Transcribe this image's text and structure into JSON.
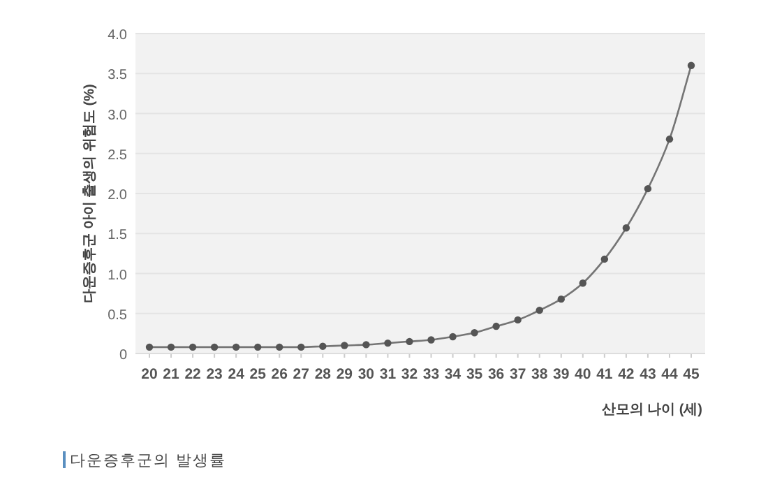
{
  "chart_data": {
    "type": "line",
    "xlabel": "산모의 나이 (세)",
    "ylabel": "다운증후군 아이 출생의 위험도 (%)",
    "annotations": [
      "다운증후군의 발생률"
    ],
    "categories": [
      "20",
      "21",
      "22",
      "23",
      "24",
      "25",
      "26",
      "27",
      "28",
      "29",
      "30",
      "31",
      "32",
      "33",
      "34",
      "35",
      "36",
      "37",
      "38",
      "39",
      "40",
      "41",
      "42",
      "43",
      "44",
      "45"
    ],
    "series": [
      {
        "color": "#555555",
        "values": [
          0.08,
          0.08,
          0.08,
          0.08,
          0.08,
          0.08,
          0.08,
          0.08,
          0.09,
          0.1,
          0.11,
          0.13,
          0.15,
          0.17,
          0.21,
          0.26,
          0.34,
          0.42,
          0.54,
          0.68,
          0.88,
          1.18,
          1.57,
          2.06,
          2.68,
          3.6
        ]
      }
    ],
    "ylim": [
      0,
      4
    ],
    "yticks": [
      0,
      {
        "value": 0.5,
        "label": "0.5"
      },
      {
        "value": 1,
        "label": "1.0"
      },
      {
        "value": 1.5,
        "label": "1.5"
      },
      {
        "value": 2,
        "label": "2.0"
      },
      {
        "value": 2.5,
        "label": "2.5"
      },
      {
        "value": 3,
        "label": "3.0"
      },
      {
        "value": 3.5,
        "label": "3.5"
      },
      {
        "value": 4,
        "label": "4.0"
      }
    ],
    "grid": "y",
    "marker": "circle",
    "line_style": "solid"
  }
}
